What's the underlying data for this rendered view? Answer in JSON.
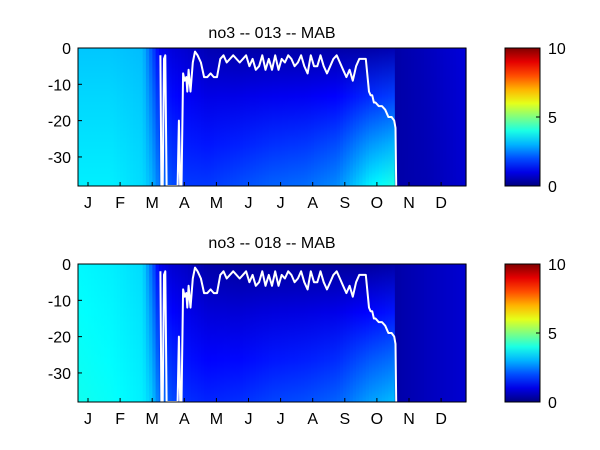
{
  "chart_data": [
    {
      "type": "heatmap",
      "title": "no3 -- 013 -- MAB",
      "xlabel": "",
      "ylabel": "",
      "x_tick_labels": [
        "J",
        "F",
        "M",
        "A",
        "M",
        "J",
        "J",
        "A",
        "S",
        "O",
        "N",
        "D"
      ],
      "y_ticks": [
        0,
        -10,
        -20,
        -30
      ],
      "ylim": [
        -38,
        0
      ],
      "colorbar": {
        "ticks": [
          0,
          5,
          10
        ],
        "range": [
          0,
          10
        ],
        "colormap": "jet"
      },
      "color_profile": [
        {
          "m": 0.0,
          "top": 3.2,
          "bottom": 3.6
        },
        {
          "m": 1.0,
          "top": 3.2,
          "bottom": 3.6
        },
        {
          "m": 2.0,
          "top": 3.1,
          "bottom": 3.4
        },
        {
          "m": 2.3,
          "top": 2.0,
          "bottom": 3.0
        },
        {
          "m": 2.5,
          "top": 1.2,
          "bottom": 2.4
        },
        {
          "m": 2.9,
          "top": 0.9,
          "bottom": 2.0
        },
        {
          "m": 3.3,
          "top": 0.8,
          "bottom": 1.8
        },
        {
          "m": 4.0,
          "top": 0.5,
          "bottom": 1.8
        },
        {
          "m": 5.0,
          "top": 0.4,
          "bottom": 2.0
        },
        {
          "m": 6.0,
          "top": 0.4,
          "bottom": 2.2
        },
        {
          "m": 7.0,
          "top": 0.4,
          "bottom": 2.3
        },
        {
          "m": 8.0,
          "top": 0.4,
          "bottom": 2.6
        },
        {
          "m": 9.0,
          "top": 0.4,
          "bottom": 3.6
        },
        {
          "m": 9.8,
          "top": 0.5,
          "bottom": 4.0
        },
        {
          "m": 9.85,
          "top": 0.4,
          "bottom": 0.4
        },
        {
          "m": 10.8,
          "top": 0.6,
          "bottom": 0.5
        },
        {
          "m": 12.0,
          "top": 0.9,
          "bottom": 0.8
        }
      ],
      "mixed_layer_depth": {
        "x": [
          2.55,
          2.58,
          2.62,
          2.66,
          2.7,
          2.74,
          2.78,
          3.08,
          3.12,
          3.16,
          3.2,
          3.25,
          3.3,
          3.35,
          3.38,
          3.42,
          3.48,
          3.55,
          3.62,
          3.7,
          3.8,
          3.9,
          4.0,
          4.1,
          4.2,
          4.3,
          4.4,
          4.5,
          4.6,
          4.8,
          5.0,
          5.1,
          5.2,
          5.3,
          5.4,
          5.5,
          5.6,
          5.7,
          5.8,
          5.9,
          6.0,
          6.1,
          6.2,
          6.3,
          6.4,
          6.5,
          6.6,
          6.7,
          6.8,
          6.9,
          7.0,
          7.1,
          7.2,
          7.3,
          7.4,
          7.5,
          7.6,
          7.7,
          7.8,
          7.9,
          8.0,
          8.1,
          8.2,
          8.3,
          8.4,
          8.5,
          8.6,
          8.7,
          8.8,
          8.9,
          9.0,
          9.05,
          9.1,
          9.15,
          9.2,
          9.3,
          9.4,
          9.5,
          9.6,
          9.7,
          9.78,
          9.82,
          9.84
        ],
        "y": [
          -2,
          -38,
          -38,
          -3,
          -2,
          -38,
          -38,
          -38,
          -20,
          -38,
          -38,
          -7,
          -9,
          -8,
          -12,
          -6,
          -12,
          -4,
          -1,
          -2,
          -4,
          -8,
          -8,
          -7,
          -8,
          -8,
          -3,
          -2,
          -4,
          -2,
          -4,
          -3,
          -2,
          -5,
          -3,
          -6,
          -5,
          -2,
          -6,
          -3,
          -6,
          -2,
          -6,
          -3,
          -4,
          -2,
          -3,
          -5,
          -4,
          -2,
          -5,
          -7,
          -2,
          -5,
          -5,
          -2,
          -5,
          -7,
          -5,
          -3,
          -2,
          -4,
          -6,
          -8,
          -6,
          -9,
          -5,
          -3,
          -3,
          -3,
          -12,
          -13,
          -13,
          -15,
          -15,
          -16,
          -16,
          -17,
          -19,
          -19,
          -20,
          -22,
          -38
        ]
      }
    },
    {
      "type": "heatmap",
      "title": "no3 -- 018 -- MAB",
      "xlabel": "",
      "ylabel": "",
      "x_tick_labels": [
        "J",
        "F",
        "M",
        "A",
        "M",
        "J",
        "J",
        "A",
        "S",
        "O",
        "N",
        "D"
      ],
      "y_ticks": [
        0,
        -10,
        -20,
        -30
      ],
      "ylim": [
        -38,
        0
      ],
      "colorbar": {
        "ticks": [
          0,
          5,
          10
        ],
        "range": [
          0,
          10
        ],
        "colormap": "jet"
      },
      "color_profile": [
        {
          "m": 0.0,
          "top": 3.7,
          "bottom": 3.9
        },
        {
          "m": 1.0,
          "top": 3.6,
          "bottom": 3.8
        },
        {
          "m": 2.0,
          "top": 3.4,
          "bottom": 3.6
        },
        {
          "m": 2.3,
          "top": 2.2,
          "bottom": 3.2
        },
        {
          "m": 2.5,
          "top": 1.1,
          "bottom": 2.4
        },
        {
          "m": 2.9,
          "top": 0.8,
          "bottom": 2.0
        },
        {
          "m": 3.3,
          "top": 0.7,
          "bottom": 1.7
        },
        {
          "m": 4.0,
          "top": 0.4,
          "bottom": 1.6
        },
        {
          "m": 5.0,
          "top": 0.3,
          "bottom": 1.7
        },
        {
          "m": 6.0,
          "top": 0.3,
          "bottom": 1.9
        },
        {
          "m": 7.0,
          "top": 0.3,
          "bottom": 2.0
        },
        {
          "m": 8.0,
          "top": 0.3,
          "bottom": 2.2
        },
        {
          "m": 9.0,
          "top": 0.3,
          "bottom": 2.8
        },
        {
          "m": 9.8,
          "top": 0.4,
          "bottom": 3.1
        },
        {
          "m": 9.85,
          "top": 0.4,
          "bottom": 0.4
        },
        {
          "m": 10.8,
          "top": 0.6,
          "bottom": 0.6
        },
        {
          "m": 12.0,
          "top": 0.8,
          "bottom": 0.8
        }
      ],
      "mixed_layer_depth": {
        "x": [
          2.55,
          2.58,
          2.62,
          2.66,
          2.7,
          2.74,
          2.78,
          3.08,
          3.12,
          3.16,
          3.2,
          3.25,
          3.3,
          3.35,
          3.38,
          3.42,
          3.48,
          3.55,
          3.62,
          3.7,
          3.8,
          3.9,
          4.0,
          4.1,
          4.2,
          4.3,
          4.4,
          4.5,
          4.6,
          4.8,
          5.0,
          5.1,
          5.2,
          5.3,
          5.4,
          5.5,
          5.6,
          5.7,
          5.8,
          5.9,
          6.0,
          6.1,
          6.2,
          6.3,
          6.4,
          6.5,
          6.6,
          6.7,
          6.8,
          6.9,
          7.0,
          7.1,
          7.2,
          7.3,
          7.4,
          7.5,
          7.6,
          7.7,
          7.8,
          7.9,
          8.0,
          8.1,
          8.2,
          8.3,
          8.4,
          8.5,
          8.6,
          8.7,
          8.8,
          8.9,
          9.0,
          9.05,
          9.1,
          9.15,
          9.2,
          9.3,
          9.4,
          9.5,
          9.6,
          9.7,
          9.78,
          9.82,
          9.84
        ],
        "y": [
          -2,
          -38,
          -38,
          -3,
          -2,
          -38,
          -38,
          -38,
          -20,
          -38,
          -38,
          -7,
          -9,
          -8,
          -12,
          -6,
          -12,
          -4,
          -1,
          -2,
          -4,
          -8,
          -8,
          -7,
          -8,
          -8,
          -3,
          -2,
          -4,
          -2,
          -4,
          -3,
          -2,
          -5,
          -3,
          -6,
          -5,
          -2,
          -6,
          -3,
          -6,
          -2,
          -6,
          -3,
          -4,
          -2,
          -3,
          -5,
          -4,
          -2,
          -5,
          -7,
          -2,
          -5,
          -5,
          -2,
          -5,
          -7,
          -5,
          -3,
          -2,
          -4,
          -6,
          -8,
          -6,
          -9,
          -5,
          -3,
          -3,
          -3,
          -12,
          -13,
          -13,
          -15,
          -15,
          -16,
          -16,
          -17,
          -19,
          -19,
          -20,
          -22,
          -38
        ]
      }
    }
  ]
}
